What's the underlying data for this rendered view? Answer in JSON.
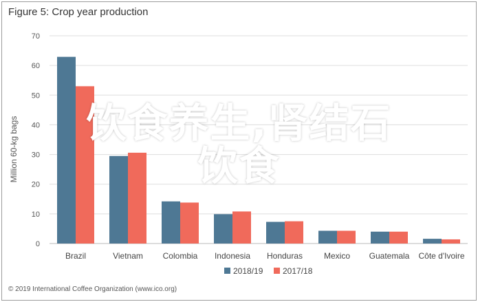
{
  "figure_title": "Figure 5: Crop year production",
  "footer": "© 2019 International Coffee Organization (www.ico.org)",
  "overlay_text": [
    "饮食养生,肾结石",
    "饮食"
  ],
  "colors": {
    "series1": "#4e7894",
    "series2": "#f06a5b",
    "grid": "#dddddd",
    "axis_text": "#555555",
    "overlay": "#ffffff"
  },
  "chart_data": {
    "type": "bar",
    "title": "Figure 5: Crop year production",
    "xlabel": "",
    "ylabel": "Million 60-kg bags",
    "ylim": [
      0,
      70
    ],
    "yticks": [
      0,
      10,
      20,
      30,
      40,
      50,
      60,
      70
    ],
    "grid": true,
    "legend_position": "bottom",
    "categories": [
      "Brazil",
      "Vietnam",
      "Colombia",
      "Indonesia",
      "Honduras",
      "Mexico",
      "Guatemala",
      "Côte d'Ivoire"
    ],
    "series": [
      {
        "name": "2018/19",
        "values": [
          62.9,
          29.5,
          14.2,
          9.9,
          7.3,
          4.3,
          4.0,
          1.6
        ]
      },
      {
        "name": "2017/18",
        "values": [
          53.0,
          30.6,
          13.8,
          10.8,
          7.5,
          4.3,
          4.0,
          1.4
        ]
      }
    ]
  }
}
